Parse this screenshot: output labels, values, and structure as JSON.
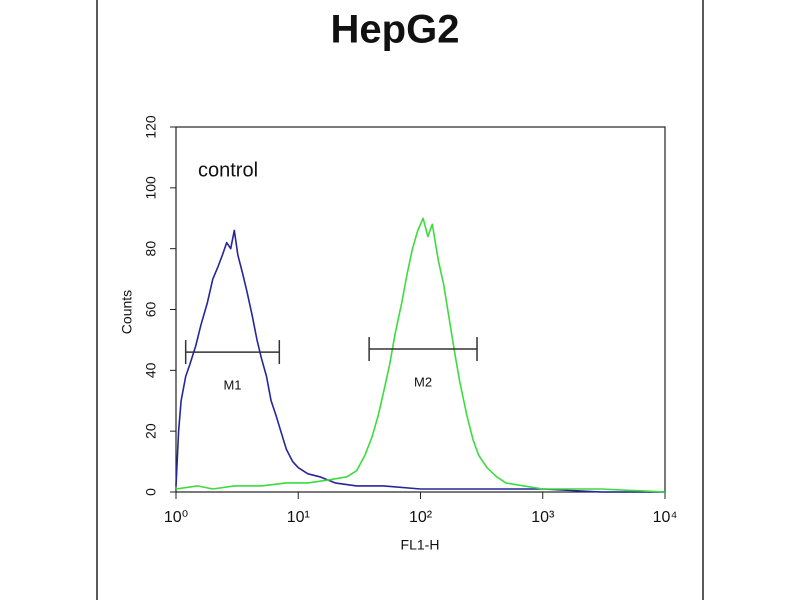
{
  "chart_data": {
    "type": "histogram-overlay",
    "title": "HepG2",
    "xlabel": "FL1-H",
    "ylabel": "Counts",
    "annotation": "control",
    "xscale": "log",
    "xlim": [
      1,
      10000
    ],
    "xticks": [
      {
        "value": 1,
        "label": "10⁰"
      },
      {
        "value": 10,
        "label": "10¹"
      },
      {
        "value": 100,
        "label": "10²"
      },
      {
        "value": 1000,
        "label": "10³"
      },
      {
        "value": 10000,
        "label": "10⁴"
      }
    ],
    "ylim": [
      0,
      120
    ],
    "yticks": [
      0,
      20,
      40,
      60,
      80,
      100,
      120
    ],
    "series": [
      {
        "color": "#26269a",
        "x": [
          1,
          1.05,
          1.1,
          1.2,
          1.3,
          1.45,
          1.6,
          1.8,
          2,
          2.2,
          2.4,
          2.6,
          2.8,
          3,
          3.2,
          3.5,
          3.8,
          4.2,
          4.6,
          5,
          5.5,
          6,
          6.6,
          7.2,
          8,
          9,
          10,
          12,
          15,
          20,
          30,
          50,
          100,
          200,
          500,
          1000,
          3000,
          10000
        ],
        "values": [
          2,
          20,
          30,
          38,
          42,
          48,
          55,
          62,
          70,
          74,
          78,
          82,
          80,
          86,
          78,
          72,
          66,
          58,
          50,
          44,
          38,
          30,
          25,
          20,
          14,
          10,
          8,
          6,
          5,
          3,
          2,
          2,
          1,
          1,
          1,
          1,
          0,
          0
        ]
      },
      {
        "color": "#3ddc3d",
        "x": [
          1,
          1.5,
          2,
          3,
          5,
          8,
          12,
          18,
          25,
          30,
          35,
          40,
          45,
          50,
          56,
          62,
          70,
          78,
          86,
          95,
          105,
          115,
          125,
          140,
          155,
          170,
          190,
          210,
          240,
          270,
          300,
          350,
          420,
          500,
          700,
          1000,
          3000,
          10000
        ],
        "values": [
          1,
          2,
          1,
          2,
          2,
          3,
          3,
          4,
          5,
          7,
          12,
          18,
          25,
          33,
          42,
          52,
          62,
          72,
          80,
          86,
          90,
          84,
          88,
          76,
          68,
          58,
          46,
          36,
          25,
          17,
          12,
          8,
          5,
          3,
          2,
          1,
          1,
          0
        ]
      }
    ],
    "gates": [
      {
        "label": "M1",
        "x": [
          1.2,
          7
        ],
        "y": 46
      },
      {
        "label": "M2",
        "x": [
          38,
          290
        ],
        "y": 47
      }
    ]
  }
}
